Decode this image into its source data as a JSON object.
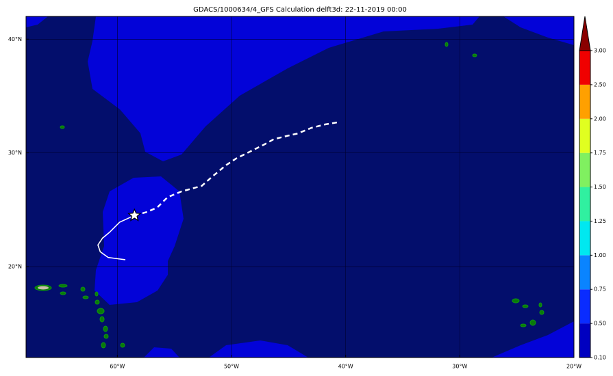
{
  "title": "GDACS/1000634/4_GFS Calculation delft3d: 22-11-2019 00:00",
  "map": {
    "xlim": [
      -68,
      -20
    ],
    "ylim": [
      12,
      42
    ],
    "xticks": [
      {
        "value": -60,
        "label": "60°W"
      },
      {
        "value": -50,
        "label": "50°W"
      },
      {
        "value": -40,
        "label": "40°W"
      },
      {
        "value": -30,
        "label": "30°W"
      },
      {
        "value": -20,
        "label": "20°W"
      }
    ],
    "yticks": [
      {
        "value": 20,
        "label": "20°N"
      },
      {
        "value": 30,
        "label": "30°N"
      },
      {
        "value": 40,
        "label": "40°N"
      }
    ],
    "observed_track": {
      "lon": [
        -59.3,
        -60.8,
        -61.5,
        -61.7,
        -61.3,
        -60.7,
        -59.8,
        -58.5
      ],
      "lat": [
        20.6,
        20.8,
        21.3,
        21.9,
        22.5,
        23.0,
        23.9,
        24.5
      ]
    },
    "forecast_track": {
      "lon": [
        -58.5,
        -57.4,
        -56.5,
        -55.6,
        -54.4,
        -52.6,
        -51.7,
        -50.5,
        -49.6,
        -48.4,
        -47.2,
        -46.3,
        -45.1,
        -44.2,
        -43.0,
        -41.8,
        -40.6
      ],
      "lat": [
        24.5,
        24.8,
        25.2,
        26.1,
        26.6,
        27.1,
        27.9,
        28.9,
        29.5,
        30.1,
        30.7,
        31.2,
        31.5,
        31.7,
        32.2,
        32.5,
        32.7
      ]
    },
    "storm_position": {
      "lon": -58.5,
      "lat": 24.5
    }
  },
  "colorbar": {
    "ticks": [
      {
        "value": 0.1,
        "label": "0.10"
      },
      {
        "value": 0.5,
        "label": "0.50"
      },
      {
        "value": 0.75,
        "label": "0.75"
      },
      {
        "value": 1,
        "label": "1.00"
      },
      {
        "value": 1.25,
        "label": "1.25"
      },
      {
        "value": 1.5,
        "label": "1.50"
      },
      {
        "value": 1.75,
        "label": "1.75"
      },
      {
        "value": 2,
        "label": "2.00"
      },
      {
        "value": 2.5,
        "label": "2.50"
      },
      {
        "value": 3,
        "label": "3.00"
      }
    ],
    "colors": [
      "#0000c0",
      "#0a2cff",
      "#0a84ff",
      "#00e8f0",
      "#30f0a0",
      "#80f060",
      "#e0ff20",
      "#ffa000",
      "#f00000"
    ],
    "extend_color": "#8a0000"
  }
}
